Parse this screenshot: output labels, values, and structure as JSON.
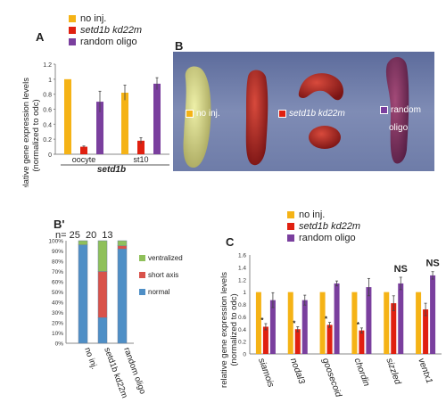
{
  "legend_top": {
    "items": [
      {
        "label": "no inj.",
        "color": "#f5b316"
      },
      {
        "label": "setd1b kd22m",
        "color": "#e02010"
      },
      {
        "label": "random oligo",
        "color": "#7a3f9e"
      }
    ]
  },
  "panel_a": {
    "letter": "A",
    "ylabel_line1": "relative gene expression levels",
    "ylabel_line2": "(normalized to odc)",
    "xlabel": "setd1b"
  },
  "panel_b": {
    "letter": "B",
    "labels": [
      "no inj.",
      "setd1b kd22m",
      "random",
      "oligo"
    ]
  },
  "panel_b2": {
    "letter": "B'",
    "n_label": "n= 25  20  13"
  },
  "panel_c": {
    "letter": "C",
    "ylabel_line1": "relative gene expression levels",
    "ylabel_line2": "(normalized to odc)",
    "ns_labels": [
      "NS",
      "NS"
    ],
    "star": "*"
  },
  "chart_data": [
    {
      "type": "bar",
      "categories": [
        "oocyte",
        "st10"
      ],
      "series": [
        {
          "name": "no inj.",
          "values": [
            1.0,
            0.82
          ],
          "errors": [
            0.0,
            0.1
          ]
        },
        {
          "name": "setd1b kd22m",
          "values": [
            0.1,
            0.18
          ],
          "errors": [
            0.01,
            0.04
          ]
        },
        {
          "name": "random oligo",
          "values": [
            0.7,
            0.94
          ],
          "errors": [
            0.14,
            0.08
          ]
        }
      ],
      "ylim": [
        0,
        1.2
      ],
      "yticks": [
        "0",
        "0.2",
        "0.4",
        "0.6",
        "0.8",
        "1",
        "1.2"
      ],
      "xlabel": "setd1b",
      "ylabel": "relative gene expression levels (normalized to odc)",
      "colors": [
        "#f5b316",
        "#e02010",
        "#7a3f9e"
      ]
    },
    {
      "type": "bar",
      "stacked": true,
      "categories": [
        "no inj.",
        "setd1b kd22m",
        "random oligo"
      ],
      "n": [
        25,
        20,
        13
      ],
      "series": [
        {
          "name": "normal",
          "values": [
            96,
            25,
            92
          ]
        },
        {
          "name": "short axis",
          "values": [
            0,
            45,
            3
          ]
        },
        {
          "name": "ventralized",
          "values": [
            4,
            30,
            5
          ]
        }
      ],
      "ylim": [
        0,
        100
      ],
      "yticks": [
        "0%",
        "10%",
        "20%",
        "30%",
        "40%",
        "50%",
        "60%",
        "70%",
        "80%",
        "90%",
        "100%"
      ],
      "colors": [
        "#4f8fc6",
        "#d9524a",
        "#8fc05a"
      ]
    },
    {
      "type": "bar",
      "categories": [
        "siamois",
        "nodal3",
        "goosecoid",
        "chordin",
        "sizzled",
        "ventx1"
      ],
      "series": [
        {
          "name": "no inj.",
          "values": [
            1,
            1,
            1,
            1,
            1,
            1
          ],
          "errors": [
            0,
            0,
            0,
            0,
            0,
            0
          ]
        },
        {
          "name": "setd1b kd22m",
          "values": [
            0.44,
            0.4,
            0.47,
            0.38,
            0.82,
            0.72
          ],
          "errors": [
            0.05,
            0.04,
            0.04,
            0.04,
            0.12,
            0.1
          ]
        },
        {
          "name": "random oligo",
          "values": [
            0.87,
            0.87,
            1.14,
            1.08,
            1.14,
            1.27
          ],
          "errors": [
            0.12,
            0.08,
            0.04,
            0.14,
            0.1,
            0.06
          ]
        }
      ],
      "significance": [
        "*",
        "*",
        "*",
        "*",
        "NS",
        "NS"
      ],
      "ylim": [
        0,
        1.6
      ],
      "yticks": [
        "0",
        "0.2",
        "0.4",
        "0.6",
        "0.8",
        "1",
        "1.2",
        "1.4",
        "1.6"
      ],
      "ylabel": "relative gene expression levels (normalized to odc)",
      "colors": [
        "#f5b316",
        "#e02010",
        "#7a3f9e"
      ]
    }
  ]
}
